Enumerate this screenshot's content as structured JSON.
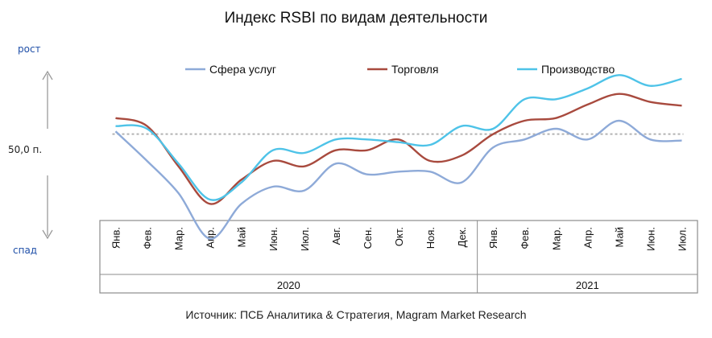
{
  "title": "Индекс RSBI по видам деятельности",
  "source": "Источник: ПСБ Аналитика & Стратегия, Magram Market Research",
  "indicators": {
    "up": "рост",
    "down": "спад",
    "level": "50,0 п."
  },
  "chart_data": {
    "type": "line",
    "title": "Индекс RSBI по видам деятельности",
    "x": [
      "Янв.",
      "Фев.",
      "Мар.",
      "Апр.",
      "Май",
      "Июн.",
      "Июл.",
      "Авг.",
      "Сен.",
      "Окт.",
      "Ноя.",
      "Дек.",
      "Янв.",
      "Фев.",
      "Мар.",
      "Апр.",
      "Май",
      "Июн.",
      "Июл."
    ],
    "year_groups": [
      {
        "label": "2020",
        "count": 12
      },
      {
        "label": "2021",
        "count": 7
      }
    ],
    "reference_line": 50,
    "reference_label": "50,0 п.",
    "ylim": [
      30,
      66
    ],
    "legend_position": "top",
    "series": [
      {
        "name": "Сфера услуг",
        "color": "#8eaad8",
        "values": [
          50.5,
          45.0,
          39.0,
          30.5,
          37.0,
          40.2,
          39.5,
          44.5,
          42.5,
          43.0,
          43.0,
          41.0,
          47.5,
          49.0,
          51.0,
          49.0,
          52.5,
          49.0,
          48.8
        ]
      },
      {
        "name": "Торговля",
        "color": "#a84a3e",
        "values": [
          53.0,
          51.5,
          44.0,
          37.0,
          41.5,
          45.0,
          44.0,
          47.0,
          47.0,
          49.0,
          45.0,
          46.0,
          50.0,
          52.5,
          53.0,
          55.5,
          57.5,
          56.0,
          55.3
        ]
      },
      {
        "name": "Производство",
        "color": "#4ec3e8",
        "values": [
          51.5,
          51.0,
          44.5,
          37.8,
          41.0,
          47.0,
          46.5,
          49.0,
          49.0,
          48.5,
          48.0,
          51.5,
          51.0,
          56.5,
          56.5,
          58.5,
          61.0,
          59.0,
          60.3
        ]
      }
    ]
  }
}
